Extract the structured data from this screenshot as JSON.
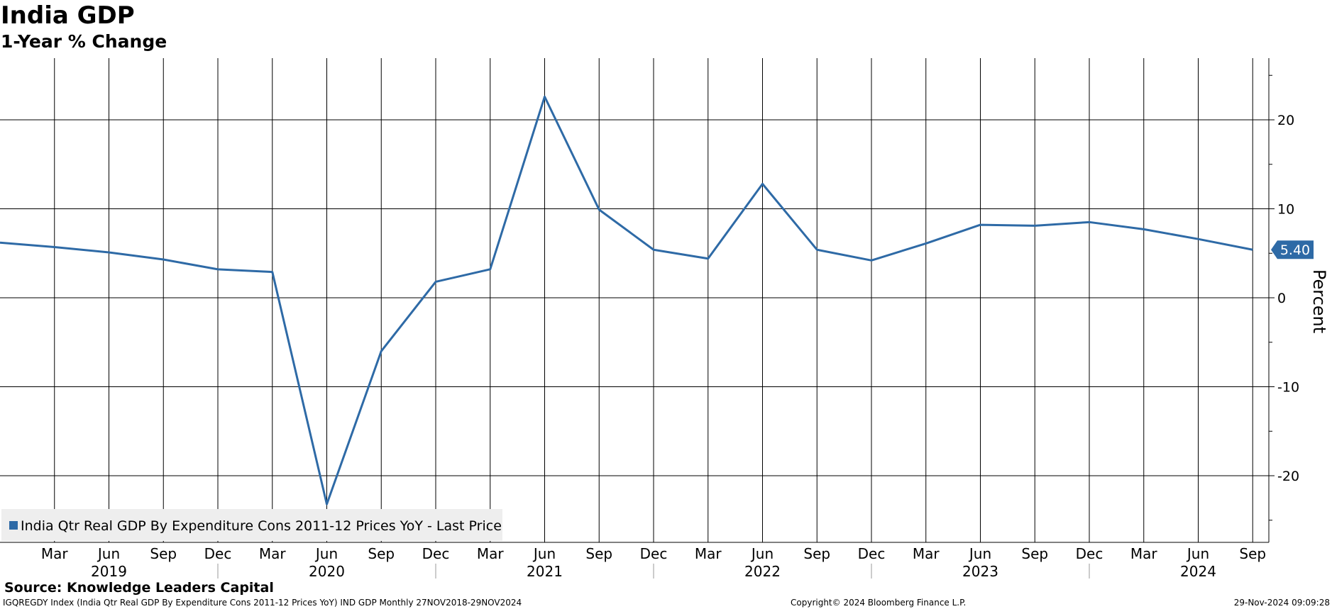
{
  "header": {
    "title": "India GDP",
    "subtitle": "1-Year % Change"
  },
  "footer": {
    "source": "Source: Knowledge Leaders Capital",
    "ticker_info": "IGQREGDY Index (India Qtr Real GDP By Expenditure Cons 2011-12 Prices YoY) IND GDP  Monthly 27NOV2018-29NOV2024",
    "copyright": "Copyright© 2024 Bloomberg Finance L.P.",
    "timestamp": "29-Nov-2024 09:09:28"
  },
  "colors": {
    "series": "#2e6aa6",
    "grid": "#000000",
    "legend_bg": "#eeeeee",
    "last_label_bg": "#2e6aa6"
  },
  "chart_data": {
    "type": "line",
    "ylabel": "Percent",
    "ylim": [
      -27,
      27
    ],
    "yticks": [
      -20,
      -10,
      0,
      10,
      20
    ],
    "ytick_labels": [
      "-20",
      "-10",
      "0",
      "10",
      "20"
    ],
    "grid": true,
    "legend_position": "bottom-left",
    "x_month_labels": [
      "Mar",
      "Jun",
      "Sep",
      "Dec",
      "Mar",
      "Jun",
      "Sep",
      "Dec",
      "Mar",
      "Jun",
      "Sep",
      "Dec",
      "Mar",
      "Jun",
      "Sep",
      "Dec",
      "Mar",
      "Jun",
      "Sep",
      "Dec",
      "Mar",
      "Jun",
      "Sep"
    ],
    "x_year_labels": [
      "2019",
      "2020",
      "2021",
      "2022",
      "2023",
      "2024"
    ],
    "last_value_label": "5.40",
    "series": [
      {
        "name": "India Qtr Real GDP By Expenditure Cons 2011-12 Prices YoY - Last Price",
        "x": [
          "2018-12",
          "2019-03",
          "2019-06",
          "2019-09",
          "2019-12",
          "2020-03",
          "2020-06",
          "2020-09",
          "2020-12",
          "2021-03",
          "2021-06",
          "2021-09",
          "2021-12",
          "2022-03",
          "2022-06",
          "2022-09",
          "2022-12",
          "2023-03",
          "2023-06",
          "2023-09",
          "2023-12",
          "2024-03",
          "2024-06",
          "2024-09"
        ],
        "values": [
          6.2,
          5.7,
          5.1,
          4.3,
          3.2,
          2.9,
          -23.2,
          -6.0,
          1.8,
          3.2,
          22.6,
          9.9,
          5.4,
          4.4,
          12.8,
          5.4,
          4.2,
          6.1,
          8.2,
          8.1,
          8.5,
          7.7,
          6.6,
          5.4
        ]
      }
    ]
  }
}
